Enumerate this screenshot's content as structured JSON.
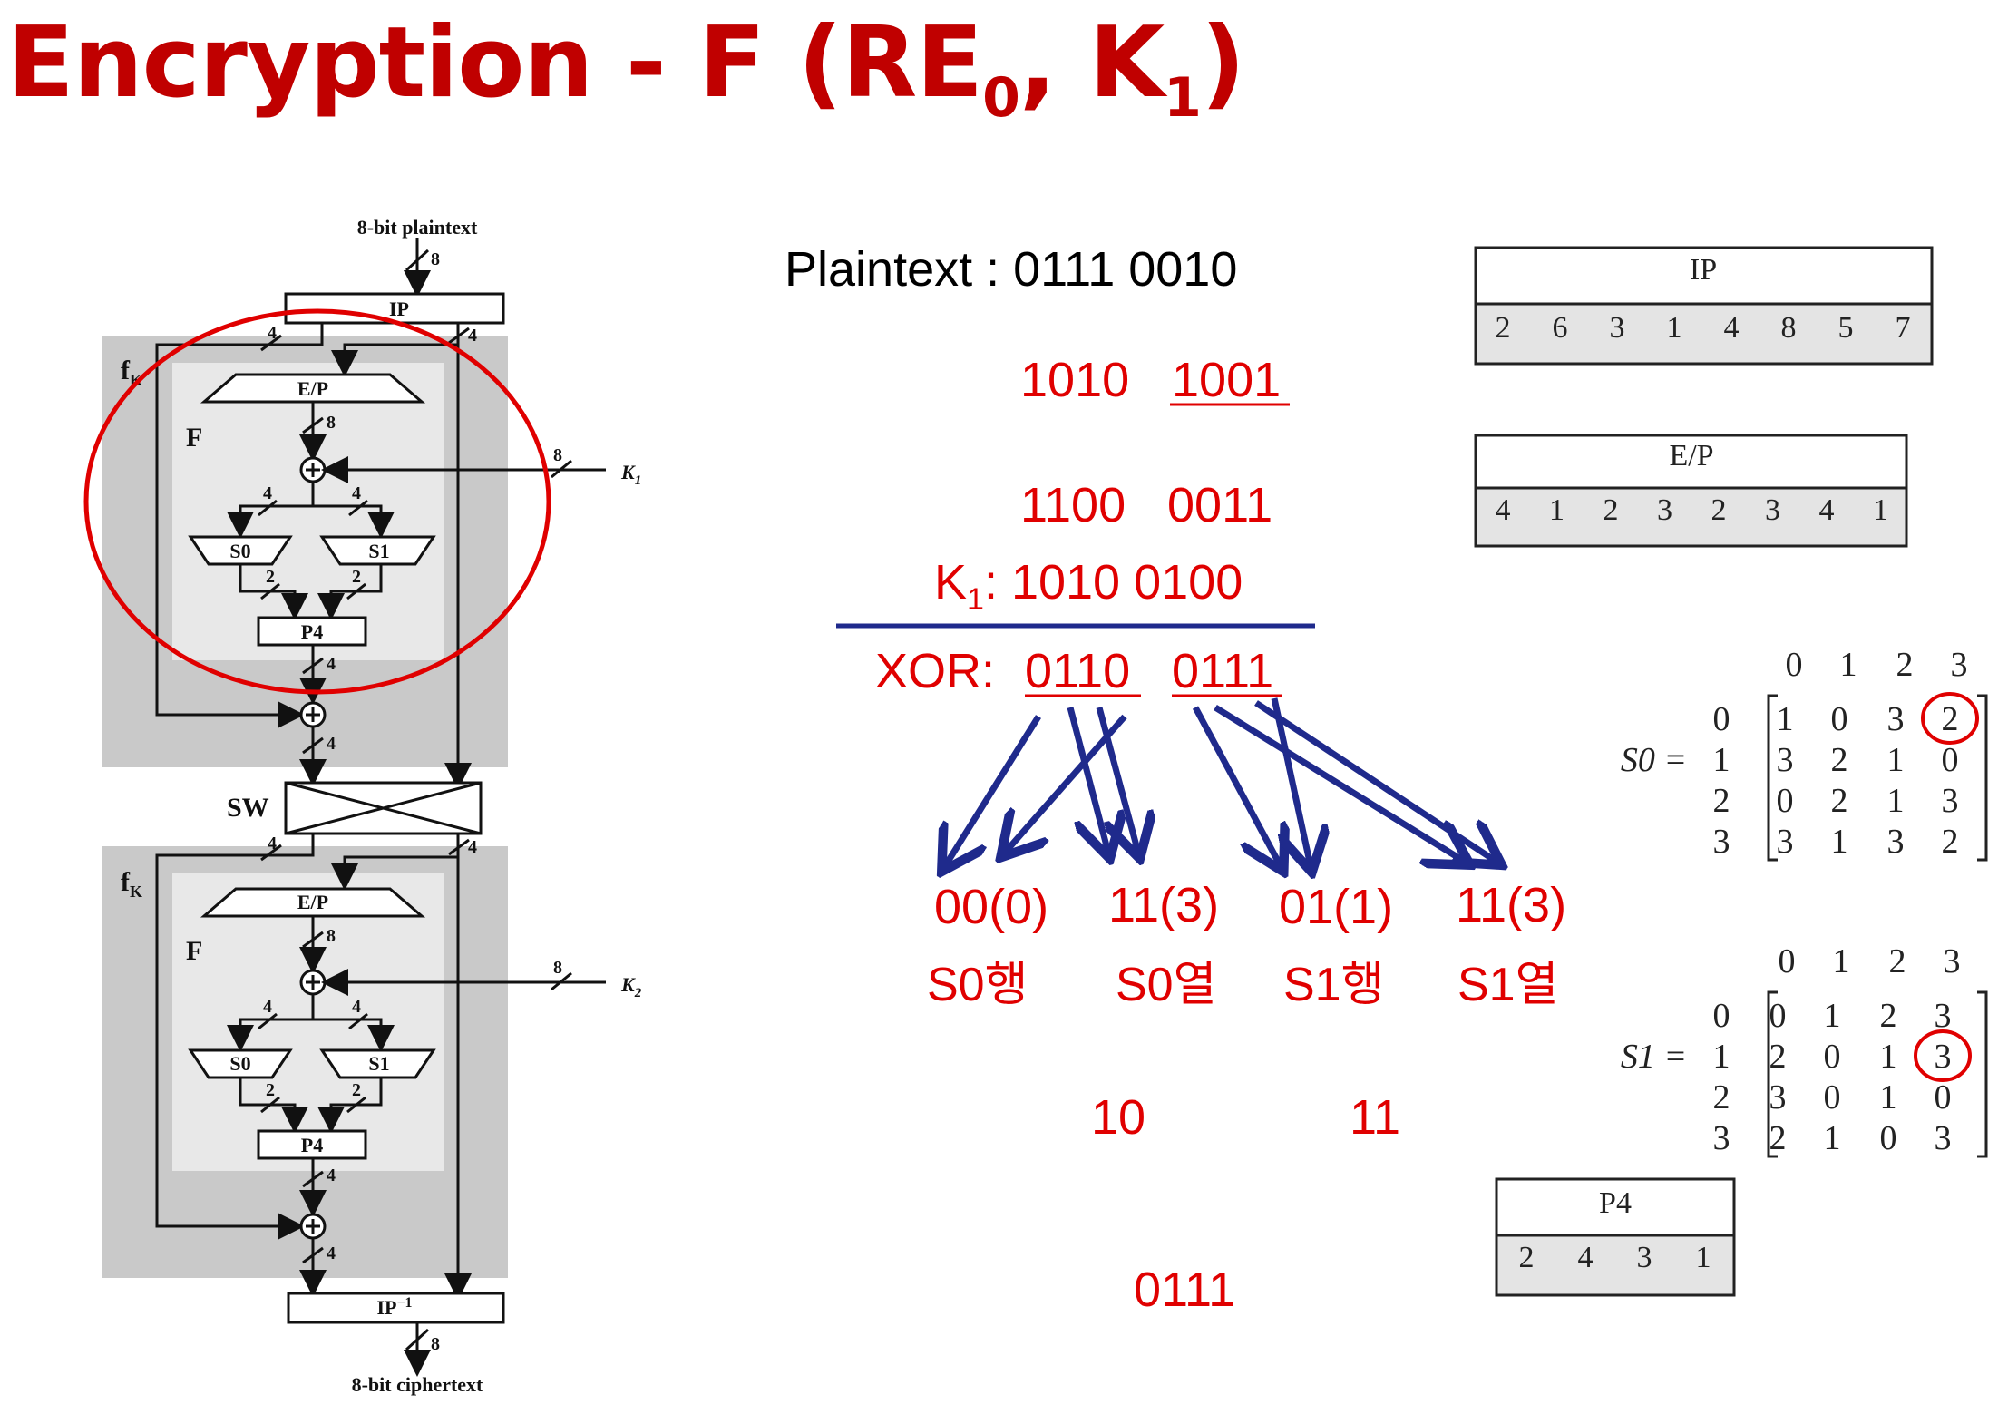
{
  "title": {
    "main": "Encryption - F (RE",
    "sub1": "0",
    "mid": ", K",
    "sub2": "1",
    "end": ")"
  },
  "diagram": {
    "top_label": "8-bit plaintext",
    "bottom_label": "8-bit ciphertext",
    "ip": "IP",
    "ip_inv": "IP",
    "ip_inv_sup": "−1",
    "fk": "f",
    "fk_sub": "K",
    "f": "F",
    "ep": "E/P",
    "s0": "S0",
    "s1": "S1",
    "p4": "P4",
    "sw": "SW",
    "k1": "K",
    "k1_sub": "1",
    "k2": "K",
    "k2_sub": "2",
    "n8": "8",
    "n4": "4",
    "n2": "2"
  },
  "work": {
    "plaintext": "Plaintext : 0111  0010",
    "ip_left": "1010",
    "ip_right": "1001",
    "ep_left": "1100",
    "ep_right": "0011",
    "k1_prefix": "K",
    "k1_sub": "1",
    "k1_value": ": 1010  0100",
    "xor_prefix": "XOR: ",
    "xor_left": "0110",
    "xor_right": "0111",
    "outs": [
      "00(0)",
      "11(3)",
      "01(1)",
      "11(3)"
    ],
    "out_labels": [
      "S0행",
      "S0열",
      "S1행",
      "S1열"
    ],
    "s0_result": "10",
    "s1_result": "11",
    "p4_result": "0111"
  },
  "tables": {
    "ip": {
      "title": "IP",
      "values": [
        "2",
        "6",
        "3",
        "1",
        "4",
        "8",
        "5",
        "7"
      ]
    },
    "ep": {
      "title": "E/P",
      "values": [
        "4",
        "1",
        "2",
        "3",
        "2",
        "3",
        "4",
        "1"
      ]
    },
    "p4": {
      "title": "P4",
      "values": [
        "2",
        "4",
        "3",
        "1"
      ]
    }
  },
  "sboxes": {
    "cols": [
      "0",
      "1",
      "2",
      "3"
    ],
    "rows": [
      "0",
      "1",
      "2",
      "3"
    ],
    "s0": {
      "label": "S0 = ",
      "matrix": [
        [
          "1",
          "0",
          "3",
          "2"
        ],
        [
          "3",
          "2",
          "1",
          "0"
        ],
        [
          "0",
          "2",
          "1",
          "3"
        ],
        [
          "3",
          "1",
          "3",
          "2"
        ]
      ],
      "circled": [
        0,
        3
      ]
    },
    "s1": {
      "label": "S1 = ",
      "matrix": [
        [
          "0",
          "1",
          "2",
          "3"
        ],
        [
          "2",
          "0",
          "1",
          "3"
        ],
        [
          "3",
          "0",
          "1",
          "0"
        ],
        [
          "2",
          "1",
          "0",
          "3"
        ]
      ],
      "circled": [
        1,
        3
      ]
    }
  },
  "colors": {
    "red": "#e00000",
    "navy": "#1f2a8c",
    "title": "#c00000"
  }
}
